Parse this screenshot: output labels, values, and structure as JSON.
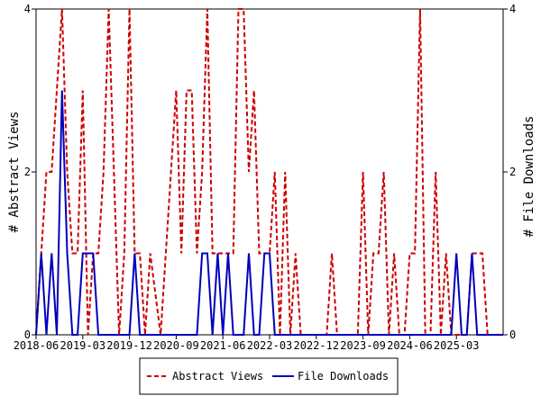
{
  "chart_data": {
    "type": "line",
    "y_left_label": "# Abstract Views",
    "y_right_label": "# File Downloads",
    "y_ticks": [
      "0",
      "2",
      "4"
    ],
    "ylim": [
      0,
      4
    ],
    "x_tick_labels": [
      "2018-06",
      "2019-03",
      "2019-12",
      "2020-09",
      "2021-06",
      "2022-03",
      "2022-12",
      "2023-09",
      "2024-06",
      "2025-03"
    ],
    "x_start_month": "2018-06",
    "x_end_month": "2025-12",
    "legend_placement": "bottom-center",
    "grid": false,
    "series": [
      {
        "name": "Abstract Views",
        "color": "#cc0000",
        "style": "dashed",
        "axis": "left",
        "x": [
          "2018-06",
          "2018-07",
          "2018-08",
          "2018-09",
          "2018-10",
          "2018-11",
          "2018-12",
          "2019-01",
          "2019-02",
          "2019-03",
          "2019-04",
          "2019-05",
          "2019-06",
          "2019-07",
          "2019-08",
          "2019-09",
          "2019-10",
          "2019-11",
          "2019-12",
          "2020-01",
          "2020-02",
          "2020-03",
          "2020-04",
          "2020-06",
          "2020-07",
          "2020-08",
          "2020-09",
          "2020-10",
          "2020-11",
          "2020-12",
          "2021-01",
          "2021-02",
          "2021-03",
          "2021-04",
          "2021-05",
          "2021-06",
          "2021-07",
          "2021-08",
          "2021-09",
          "2021-10",
          "2021-11",
          "2021-12",
          "2022-01",
          "2022-02",
          "2022-03",
          "2022-04",
          "2022-05",
          "2022-06",
          "2022-07",
          "2022-08",
          "2022-09",
          "2022-10",
          "2022-11",
          "2022-12",
          "2023-01",
          "2023-02",
          "2023-03",
          "2023-04",
          "2023-05",
          "2023-06",
          "2023-07",
          "2023-08",
          "2023-09",
          "2023-10",
          "2023-11",
          "2023-12",
          "2024-01",
          "2024-02",
          "2024-03",
          "2024-04",
          "2024-05",
          "2024-06",
          "2024-07",
          "2024-08",
          "2024-09",
          "2024-10",
          "2024-11",
          "2024-12",
          "2025-01",
          "2025-02",
          "2025-03",
          "2025-04",
          "2025-05",
          "2025-06",
          "2025-07",
          "2025-08",
          "2025-09",
          "2025-10",
          "2025-11",
          "2025-12"
        ],
        "values": [
          0,
          1,
          2,
          2,
          3,
          4,
          2,
          1,
          1,
          3,
          0,
          1,
          1,
          2,
          4,
          2,
          0,
          1,
          4,
          1,
          1,
          0,
          1,
          0,
          1,
          2,
          3,
          1,
          3,
          3,
          1,
          2,
          4,
          1,
          1,
          1,
          1,
          1,
          4,
          4,
          2,
          3,
          1,
          1,
          1,
          2,
          0,
          2,
          0,
          1,
          0,
          0,
          0,
          0,
          0,
          0,
          1,
          0,
          0,
          0,
          0,
          0,
          2,
          0,
          1,
          1,
          2,
          0,
          1,
          0,
          0,
          1,
          1,
          4,
          0,
          0,
          2,
          0,
          1,
          0,
          0,
          0,
          0,
          1,
          1,
          1,
          0,
          0,
          0,
          0
        ]
      },
      {
        "name": "File Downloads",
        "color": "#0000bb",
        "style": "solid",
        "axis": "right",
        "x": [
          "2018-06",
          "2018-07",
          "2018-08",
          "2018-09",
          "2018-10",
          "2018-11",
          "2018-12",
          "2019-01",
          "2019-02",
          "2019-03",
          "2019-04",
          "2019-05",
          "2019-06",
          "2019-07",
          "2019-08",
          "2019-09",
          "2019-10",
          "2019-11",
          "2019-12",
          "2020-01",
          "2020-02",
          "2020-03",
          "2020-04",
          "2020-06",
          "2020-07",
          "2020-08",
          "2020-09",
          "2020-10",
          "2020-11",
          "2020-12",
          "2021-01",
          "2021-02",
          "2021-03",
          "2021-04",
          "2021-05",
          "2021-06",
          "2021-07",
          "2021-08",
          "2021-09",
          "2021-10",
          "2021-11",
          "2021-12",
          "2022-01",
          "2022-02",
          "2022-03",
          "2022-04",
          "2022-05",
          "2022-06",
          "2022-07",
          "2022-08",
          "2022-09",
          "2022-10",
          "2022-11",
          "2022-12",
          "2023-01",
          "2023-02",
          "2023-03",
          "2023-04",
          "2023-05",
          "2023-06",
          "2023-07",
          "2023-08",
          "2023-09",
          "2023-10",
          "2023-11",
          "2023-12",
          "2024-01",
          "2024-02",
          "2024-03",
          "2024-04",
          "2024-05",
          "2024-06",
          "2024-07",
          "2024-08",
          "2024-09",
          "2024-10",
          "2024-11",
          "2024-12",
          "2025-01",
          "2025-02",
          "2025-03",
          "2025-04",
          "2025-05",
          "2025-06",
          "2025-07",
          "2025-08",
          "2025-09",
          "2025-10",
          "2025-11",
          "2025-12"
        ],
        "values": [
          0,
          1,
          0,
          1,
          0,
          3,
          1,
          0,
          0,
          1,
          1,
          1,
          0,
          0,
          0,
          0,
          0,
          0,
          0,
          1,
          0,
          0,
          0,
          0,
          0,
          0,
          0,
          0,
          0,
          0,
          0,
          1,
          1,
          0,
          1,
          0,
          1,
          0,
          0,
          0,
          1,
          0,
          0,
          1,
          1,
          0,
          0,
          0,
          0,
          0,
          0,
          0,
          0,
          0,
          0,
          0,
          0,
          0,
          0,
          0,
          0,
          0,
          0,
          0,
          0,
          0,
          0,
          0,
          0,
          0,
          0,
          0,
          0,
          0,
          0,
          0,
          0,
          0,
          0,
          0,
          1,
          0,
          0,
          1,
          0,
          0,
          0,
          0,
          0,
          0
        ]
      }
    ]
  }
}
